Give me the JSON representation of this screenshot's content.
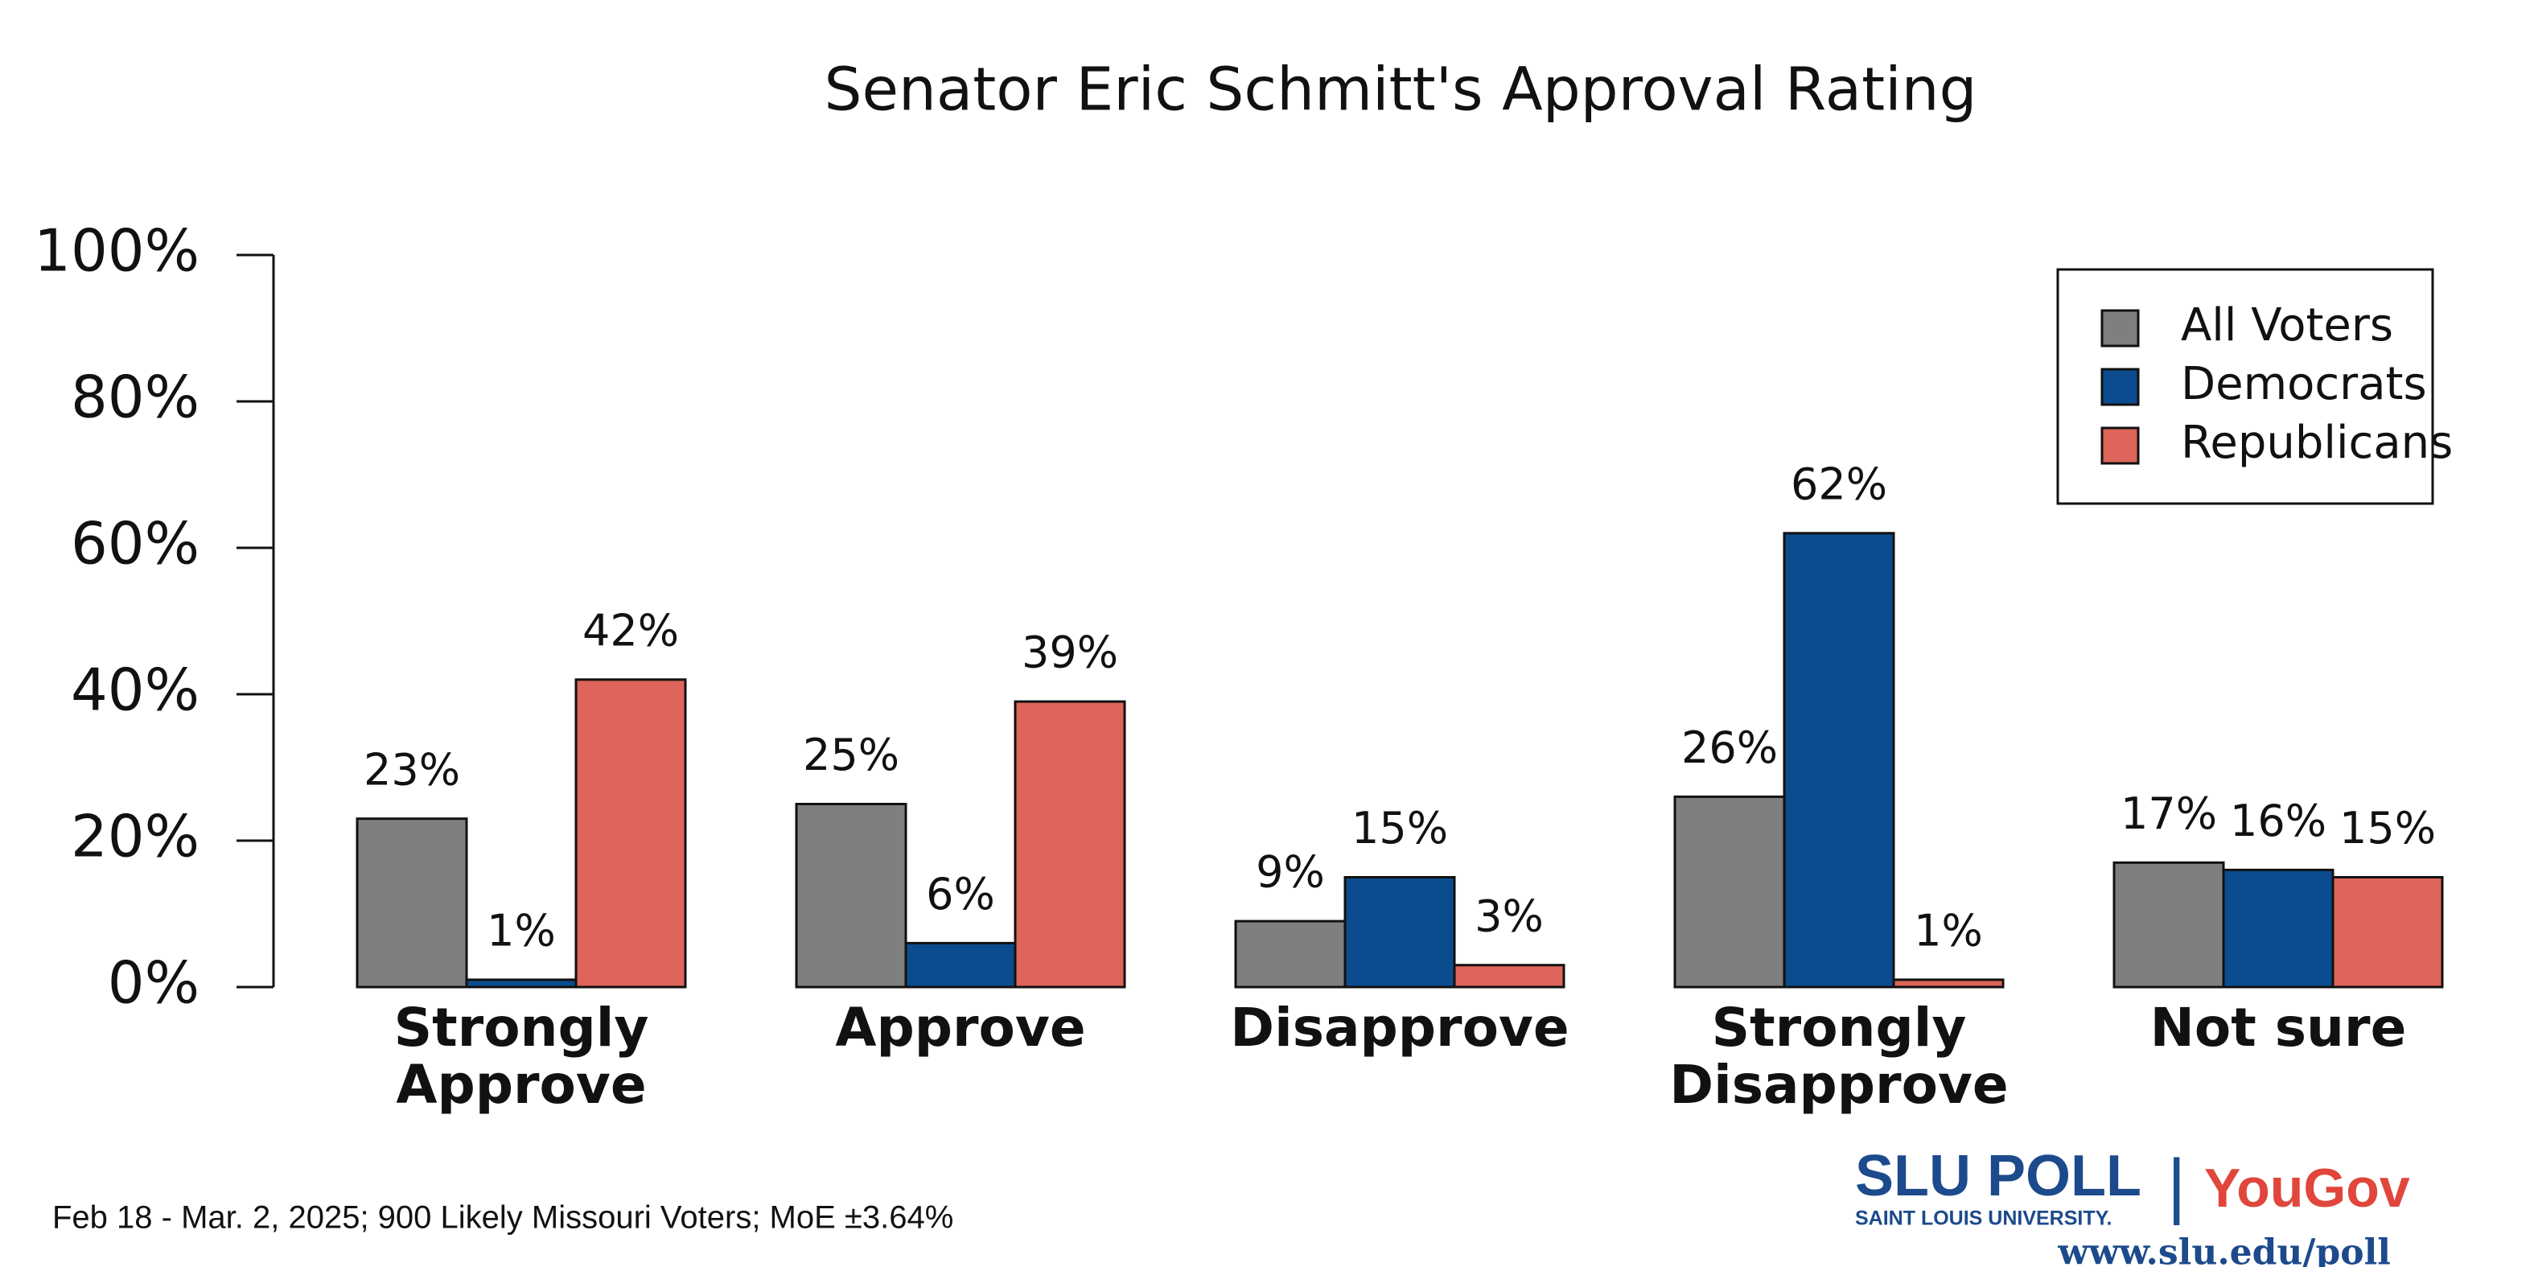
{
  "chart_data": {
    "type": "bar",
    "title": "Senator Eric Schmitt's Approval Rating",
    "categories": [
      "Strongly Approve",
      "Approve",
      "Disapprove",
      "Strongly Disapprove",
      "Not sure"
    ],
    "series": [
      {
        "name": "All Voters",
        "color": "#7f7f7f",
        "values": [
          23,
          25,
          9,
          26,
          17
        ],
        "value_labels": [
          "23%",
          "25%",
          "9%",
          "26%",
          "17%"
        ]
      },
      {
        "name": "Democrats",
        "color": "#0b4c8f",
        "values": [
          1,
          6,
          15,
          62,
          16
        ],
        "value_labels": [
          "1%",
          "6%",
          "15%",
          "62%",
          "16%"
        ]
      },
      {
        "name": "Republicans",
        "color": "#de6559",
        "values": [
          42,
          39,
          3,
          1,
          15
        ],
        "value_labels": [
          "42%",
          "39%",
          "3%",
          "1%",
          "15%"
        ]
      }
    ],
    "ylim": [
      0,
      100
    ],
    "yticks": [
      {
        "value": 0,
        "label": "0%"
      },
      {
        "value": 20,
        "label": "20%"
      },
      {
        "value": 40,
        "label": "40%"
      },
      {
        "value": 60,
        "label": "60%"
      },
      {
        "value": 80,
        "label": "80%"
      },
      {
        "value": 100,
        "label": "100%"
      }
    ],
    "grid": false,
    "legend": "upper right"
  },
  "footnote": "Feb 18 - Mar. 2, 2025; 900 Likely Missouri Voters; MoE ±3.64%",
  "logo": {
    "slu": "SLU POLL",
    "university": "SAINT LOUIS UNIVERSITY.",
    "separator": "|",
    "yougov": "YouGov",
    "url": "www.slu.edu/poll"
  }
}
